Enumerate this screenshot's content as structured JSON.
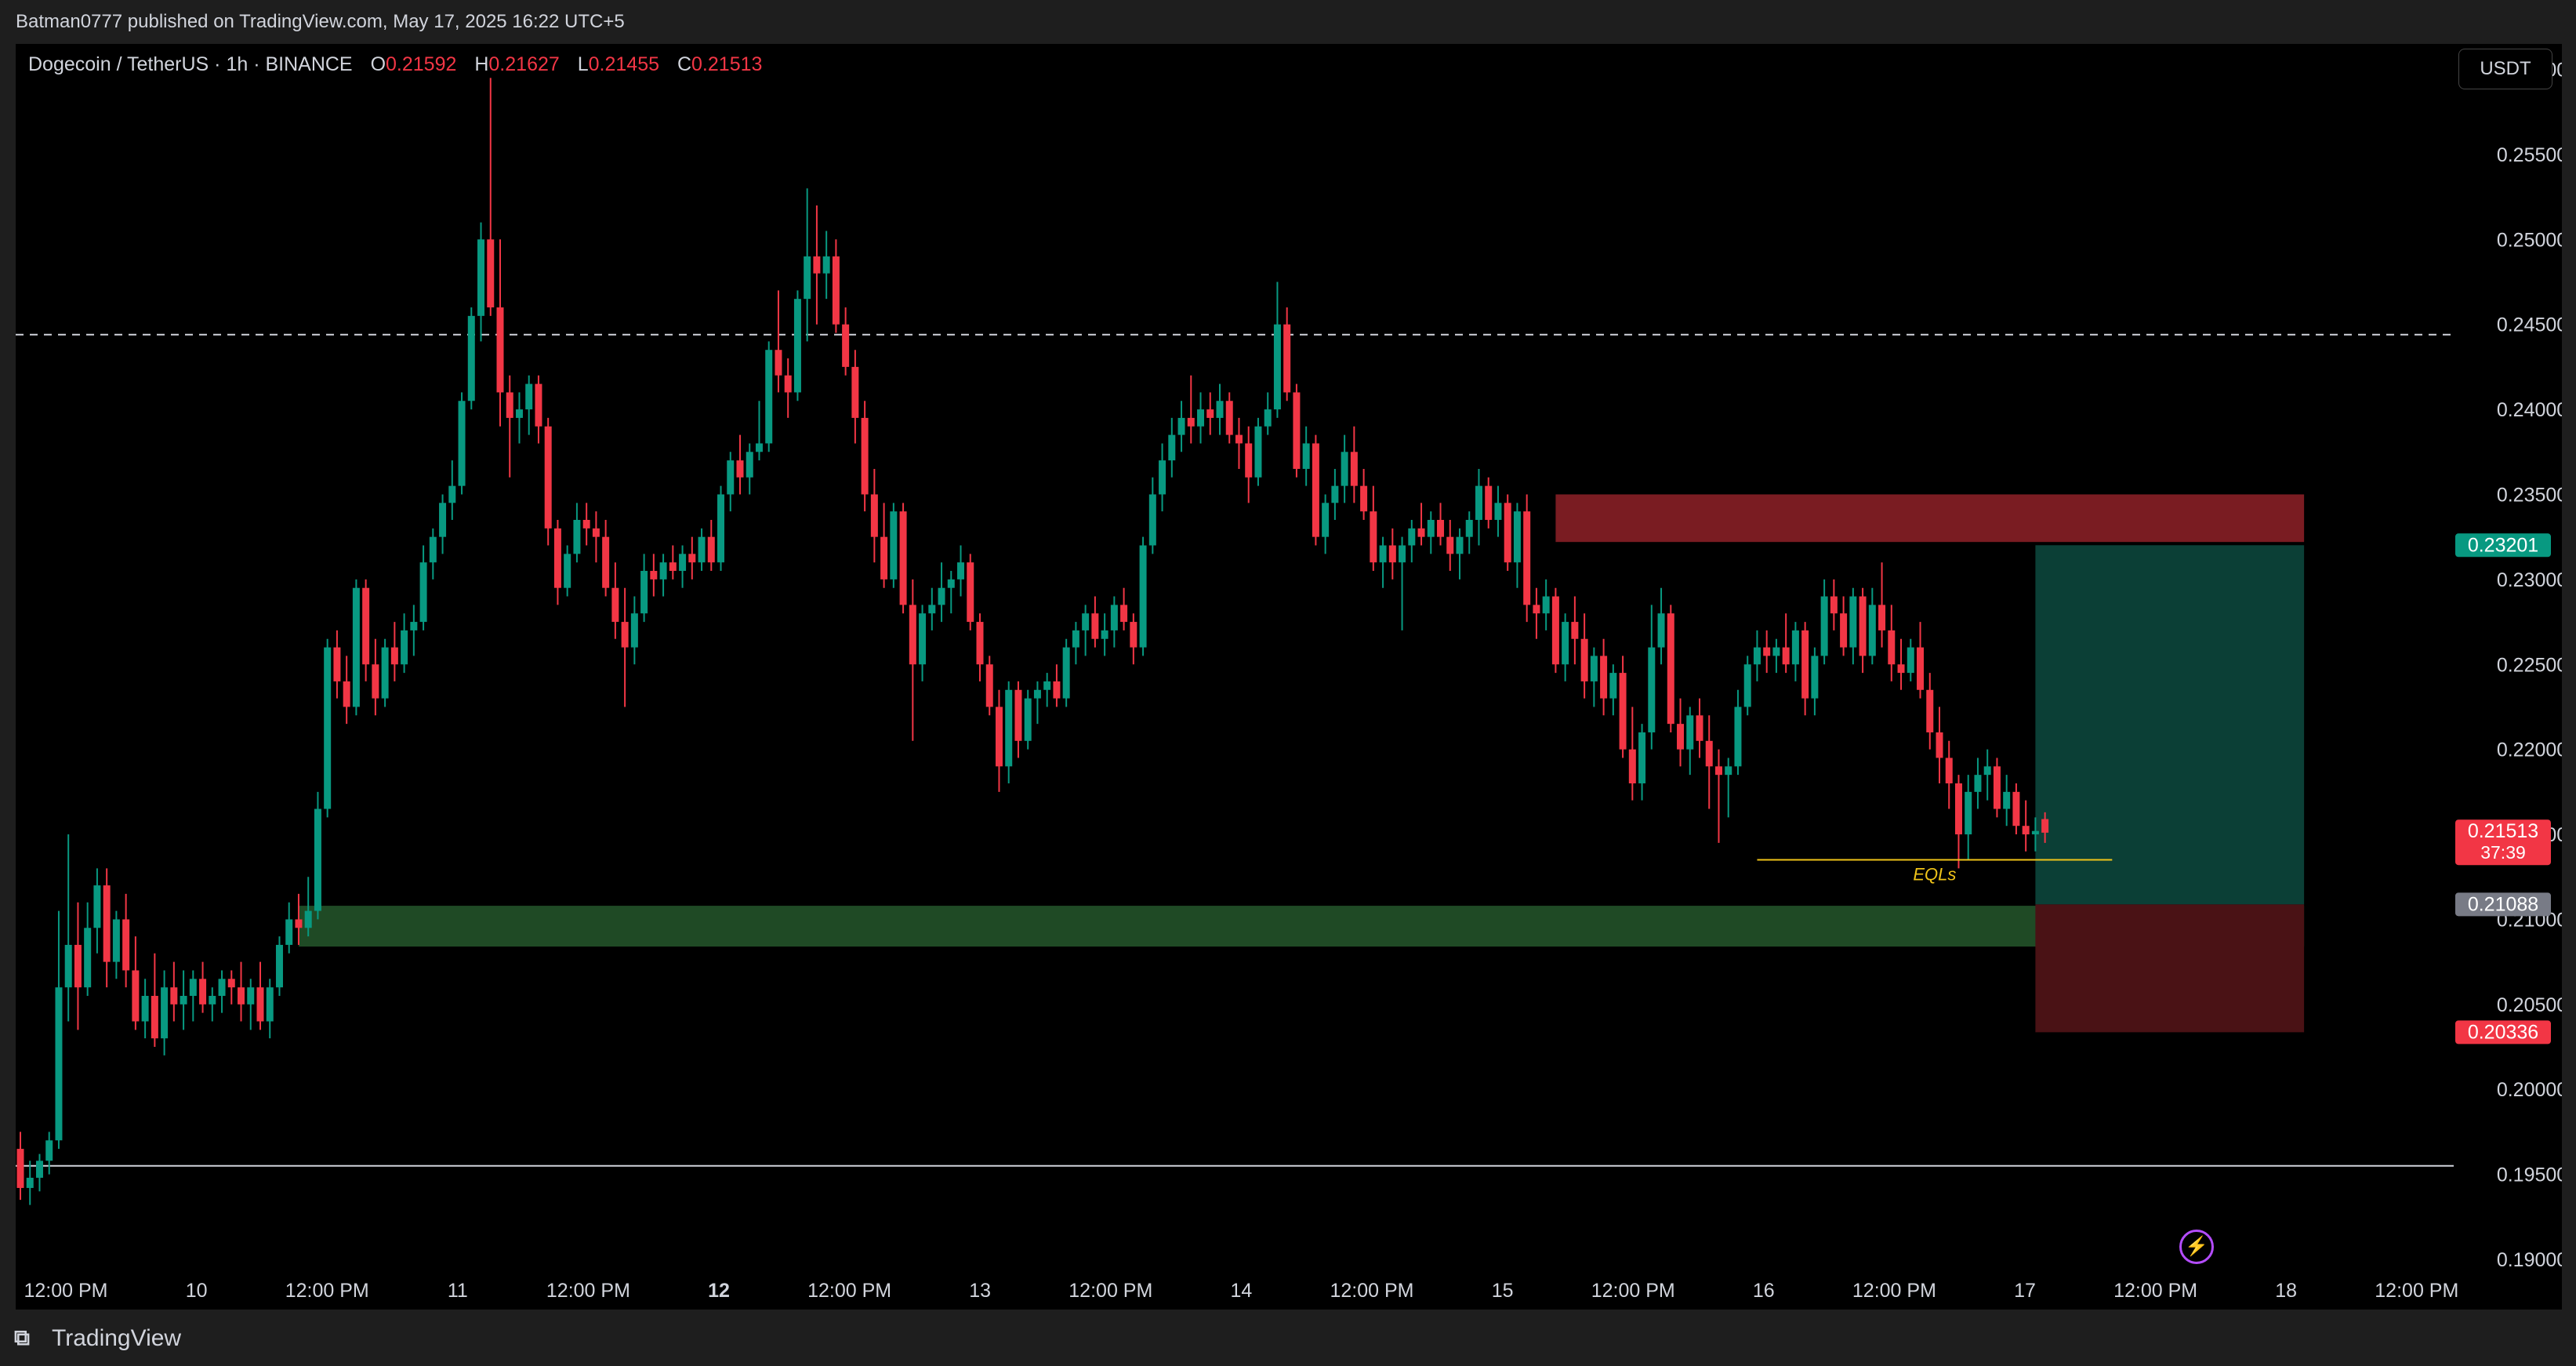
{
  "header": {
    "publish_line": "Batman0777 published on TradingView.com, May 17, 2025 16:22 UTC+5"
  },
  "legend": {
    "symbol": "Dogecoin / TetherUS · 1h · BINANCE",
    "open_label": "O",
    "open": "0.21592",
    "high_label": "H",
    "high": "0.21627",
    "low_label": "L",
    "low": "0.21455",
    "close_label": "C",
    "close": "0.21513"
  },
  "currency_button": "USDT",
  "footer": {
    "brand": "TradingView",
    "logo_icon": "tradingview-logo-icon"
  },
  "colors": {
    "up": "#089981",
    "down": "#f23645",
    "background": "#000000",
    "text": "#d1d4dc"
  },
  "chart_data": {
    "type": "candlestick",
    "ylim": [
      0.19,
      0.2615
    ],
    "y_ticks": [
      "0.26000",
      "0.25500",
      "0.25000",
      "0.24500",
      "0.24000",
      "0.23500",
      "0.23000",
      "0.22500",
      "0.22000",
      "0.21500",
      "0.21000",
      "0.20500",
      "0.20000",
      "0.19500",
      "0.19000"
    ],
    "x_ticks": [
      "12:00 PM",
      "10",
      "12:00 PM",
      "11",
      "12:00 PM",
      "12",
      "12:00 PM",
      "13",
      "12:00 PM",
      "14",
      "12:00 PM",
      "15",
      "12:00 PM",
      "16",
      "12:00 PM",
      "17",
      "12:00 PM",
      "18",
      "12:00 PM"
    ],
    "bold_x_tick": "12",
    "horizontal_lines": [
      {
        "price": 0.2444,
        "style": "dashed",
        "color": "#d1d4dc"
      },
      {
        "price": 0.1955,
        "style": "solid",
        "color": "#d1d4dc"
      }
    ],
    "zones": [
      {
        "name": "supply-zone",
        "from_index": 160,
        "to_index": 238,
        "top": 0.235,
        "bottom": 0.2322,
        "color": "#7a1c22"
      },
      {
        "name": "demand-zone",
        "from_index": 29,
        "to_index": 238,
        "top": 0.2108,
        "bottom": 0.2084,
        "color": "#1f4a25"
      }
    ],
    "position": {
      "from_index": 210,
      "to_index": 238,
      "target": 0.23201,
      "entry": 0.21088,
      "stop": 0.20336,
      "target_color": "#0b3f36",
      "stop_color": "#4a1215"
    },
    "eql": {
      "label": "EQLs",
      "price": 0.2135,
      "from_index": 181,
      "to_index": 218,
      "color": "#f0c419"
    },
    "price_tags": [
      {
        "text": "0.23201",
        "price": 0.23201,
        "color": "#089981"
      },
      {
        "text": "0.21513",
        "sub": "37:39",
        "price": 0.21513,
        "color": "#f23645"
      },
      {
        "text": "0.21088",
        "price": 0.21088,
        "color": "#787b86"
      },
      {
        "text": "0.20336",
        "price": 0.20336,
        "color": "#f23645"
      }
    ],
    "candles": [
      [
        0.1965,
        0.1975,
        0.1935,
        0.1942
      ],
      [
        0.1942,
        0.1958,
        0.1932,
        0.1948
      ],
      [
        0.1948,
        0.1962,
        0.194,
        0.1958
      ],
      [
        0.1958,
        0.1975,
        0.195,
        0.197
      ],
      [
        0.197,
        0.2105,
        0.1965,
        0.206
      ],
      [
        0.206,
        0.215,
        0.204,
        0.2085
      ],
      [
        0.2085,
        0.211,
        0.2035,
        0.206
      ],
      [
        0.206,
        0.211,
        0.2055,
        0.2095
      ],
      [
        0.2095,
        0.213,
        0.208,
        0.212
      ],
      [
        0.212,
        0.213,
        0.206,
        0.2075
      ],
      [
        0.2075,
        0.2105,
        0.2065,
        0.21
      ],
      [
        0.21,
        0.2115,
        0.206,
        0.207
      ],
      [
        0.207,
        0.209,
        0.2035,
        0.204
      ],
      [
        0.204,
        0.2065,
        0.203,
        0.2055
      ],
      [
        0.2055,
        0.208,
        0.2025,
        0.203
      ],
      [
        0.203,
        0.207,
        0.202,
        0.206
      ],
      [
        0.206,
        0.2075,
        0.204,
        0.205
      ],
      [
        0.205,
        0.207,
        0.2035,
        0.2055
      ],
      [
        0.2055,
        0.207,
        0.204,
        0.2065
      ],
      [
        0.2065,
        0.2075,
        0.2045,
        0.205
      ],
      [
        0.205,
        0.206,
        0.204,
        0.2055
      ],
      [
        0.2055,
        0.207,
        0.2045,
        0.2065
      ],
      [
        0.2065,
        0.207,
        0.205,
        0.206
      ],
      [
        0.206,
        0.2075,
        0.204,
        0.205
      ],
      [
        0.205,
        0.2065,
        0.2035,
        0.206
      ],
      [
        0.206,
        0.2075,
        0.2035,
        0.204
      ],
      [
        0.204,
        0.2065,
        0.203,
        0.206
      ],
      [
        0.206,
        0.209,
        0.2055,
        0.2085
      ],
      [
        0.2085,
        0.211,
        0.208,
        0.21
      ],
      [
        0.21,
        0.2115,
        0.2085,
        0.2095
      ],
      [
        0.2095,
        0.2125,
        0.209,
        0.2105
      ],
      [
        0.2105,
        0.2175,
        0.21,
        0.2165
      ],
      [
        0.2165,
        0.2265,
        0.216,
        0.226
      ],
      [
        0.226,
        0.227,
        0.223,
        0.224
      ],
      [
        0.224,
        0.2255,
        0.2215,
        0.2225
      ],
      [
        0.2225,
        0.23,
        0.222,
        0.2295
      ],
      [
        0.2295,
        0.23,
        0.224,
        0.225
      ],
      [
        0.225,
        0.2265,
        0.222,
        0.223
      ],
      [
        0.223,
        0.2265,
        0.2225,
        0.226
      ],
      [
        0.226,
        0.2275,
        0.224,
        0.225
      ],
      [
        0.225,
        0.228,
        0.2245,
        0.227
      ],
      [
        0.227,
        0.2285,
        0.2255,
        0.2275
      ],
      [
        0.2275,
        0.232,
        0.227,
        0.231
      ],
      [
        0.231,
        0.233,
        0.23,
        0.2325
      ],
      [
        0.2325,
        0.235,
        0.2315,
        0.2345
      ],
      [
        0.2345,
        0.237,
        0.2335,
        0.2355
      ],
      [
        0.2355,
        0.241,
        0.235,
        0.2405
      ],
      [
        0.2405,
        0.246,
        0.24,
        0.2455
      ],
      [
        0.2455,
        0.251,
        0.244,
        0.25
      ],
      [
        0.25,
        0.2595,
        0.2455,
        0.246
      ],
      [
        0.246,
        0.25,
        0.239,
        0.241
      ],
      [
        0.241,
        0.242,
        0.236,
        0.2395
      ],
      [
        0.2395,
        0.241,
        0.238,
        0.24
      ],
      [
        0.24,
        0.242,
        0.2385,
        0.2415
      ],
      [
        0.2415,
        0.242,
        0.238,
        0.239
      ],
      [
        0.239,
        0.2395,
        0.232,
        0.233
      ],
      [
        0.233,
        0.2335,
        0.2285,
        0.2295
      ],
      [
        0.2295,
        0.232,
        0.229,
        0.2315
      ],
      [
        0.2315,
        0.2345,
        0.231,
        0.2335
      ],
      [
        0.2335,
        0.2345,
        0.232,
        0.233
      ],
      [
        0.233,
        0.234,
        0.231,
        0.2325
      ],
      [
        0.2325,
        0.2335,
        0.229,
        0.2295
      ],
      [
        0.2295,
        0.231,
        0.2265,
        0.2275
      ],
      [
        0.2275,
        0.2295,
        0.2225,
        0.226
      ],
      [
        0.226,
        0.229,
        0.225,
        0.228
      ],
      [
        0.228,
        0.2315,
        0.2275,
        0.2305
      ],
      [
        0.2305,
        0.2315,
        0.229,
        0.23
      ],
      [
        0.23,
        0.2315,
        0.229,
        0.231
      ],
      [
        0.231,
        0.232,
        0.23,
        0.2305
      ],
      [
        0.2305,
        0.232,
        0.2295,
        0.2315
      ],
      [
        0.2315,
        0.2325,
        0.23,
        0.231
      ],
      [
        0.231,
        0.233,
        0.2305,
        0.2325
      ],
      [
        0.2325,
        0.2335,
        0.2305,
        0.231
      ],
      [
        0.231,
        0.2355,
        0.2305,
        0.235
      ],
      [
        0.235,
        0.2375,
        0.234,
        0.237
      ],
      [
        0.237,
        0.2385,
        0.235,
        0.236
      ],
      [
        0.236,
        0.238,
        0.235,
        0.2375
      ],
      [
        0.2375,
        0.2405,
        0.237,
        0.238
      ],
      [
        0.238,
        0.244,
        0.2375,
        0.2435
      ],
      [
        0.2435,
        0.247,
        0.241,
        0.242
      ],
      [
        0.242,
        0.243,
        0.2395,
        0.241
      ],
      [
        0.241,
        0.247,
        0.2405,
        0.2465
      ],
      [
        0.2465,
        0.253,
        0.244,
        0.249
      ],
      [
        0.249,
        0.252,
        0.245,
        0.248
      ],
      [
        0.248,
        0.2505,
        0.2465,
        0.249
      ],
      [
        0.249,
        0.25,
        0.2445,
        0.245
      ],
      [
        0.245,
        0.246,
        0.242,
        0.2425
      ],
      [
        0.2425,
        0.2435,
        0.238,
        0.2395
      ],
      [
        0.2395,
        0.2405,
        0.234,
        0.235
      ],
      [
        0.235,
        0.2365,
        0.231,
        0.2325
      ],
      [
        0.2325,
        0.2345,
        0.2295,
        0.23
      ],
      [
        0.23,
        0.2345,
        0.2295,
        0.234
      ],
      [
        0.234,
        0.2345,
        0.228,
        0.2285
      ],
      [
        0.2285,
        0.23,
        0.2205,
        0.225
      ],
      [
        0.225,
        0.2285,
        0.224,
        0.228
      ],
      [
        0.228,
        0.2295,
        0.227,
        0.2285
      ],
      [
        0.2285,
        0.231,
        0.2275,
        0.2295
      ],
      [
        0.2295,
        0.2305,
        0.228,
        0.23
      ],
      [
        0.23,
        0.232,
        0.229,
        0.231
      ],
      [
        0.231,
        0.2315,
        0.227,
        0.2275
      ],
      [
        0.2275,
        0.228,
        0.224,
        0.225
      ],
      [
        0.225,
        0.2255,
        0.222,
        0.2225
      ],
      [
        0.2225,
        0.2235,
        0.2175,
        0.219
      ],
      [
        0.219,
        0.224,
        0.218,
        0.2235
      ],
      [
        0.2235,
        0.224,
        0.2195,
        0.2205
      ],
      [
        0.2205,
        0.2235,
        0.22,
        0.223
      ],
      [
        0.223,
        0.224,
        0.2215,
        0.2235
      ],
      [
        0.2235,
        0.2245,
        0.2225,
        0.224
      ],
      [
        0.224,
        0.225,
        0.2225,
        0.223
      ],
      [
        0.223,
        0.2265,
        0.2225,
        0.226
      ],
      [
        0.226,
        0.2275,
        0.225,
        0.227
      ],
      [
        0.227,
        0.2285,
        0.2255,
        0.228
      ],
      [
        0.228,
        0.229,
        0.226,
        0.2265
      ],
      [
        0.2265,
        0.228,
        0.2255,
        0.227
      ],
      [
        0.227,
        0.229,
        0.226,
        0.2285
      ],
      [
        0.2285,
        0.2295,
        0.227,
        0.2275
      ],
      [
        0.2275,
        0.228,
        0.225,
        0.226
      ],
      [
        0.226,
        0.2325,
        0.2255,
        0.232
      ],
      [
        0.232,
        0.236,
        0.2315,
        0.235
      ],
      [
        0.235,
        0.238,
        0.234,
        0.237
      ],
      [
        0.237,
        0.2395,
        0.236,
        0.2385
      ],
      [
        0.2385,
        0.2405,
        0.2375,
        0.2395
      ],
      [
        0.2395,
        0.242,
        0.238,
        0.239
      ],
      [
        0.239,
        0.241,
        0.238,
        0.24
      ],
      [
        0.24,
        0.241,
        0.2385,
        0.2395
      ],
      [
        0.2395,
        0.2415,
        0.2385,
        0.2405
      ],
      [
        0.2405,
        0.241,
        0.238,
        0.2385
      ],
      [
        0.2385,
        0.2395,
        0.2365,
        0.238
      ],
      [
        0.238,
        0.239,
        0.2345,
        0.236
      ],
      [
        0.236,
        0.2395,
        0.2355,
        0.239
      ],
      [
        0.239,
        0.241,
        0.2385,
        0.24
      ],
      [
        0.24,
        0.2475,
        0.2395,
        0.245
      ],
      [
        0.245,
        0.246,
        0.2405,
        0.241
      ],
      [
        0.241,
        0.2415,
        0.236,
        0.2365
      ],
      [
        0.2365,
        0.239,
        0.2355,
        0.238
      ],
      [
        0.238,
        0.2385,
        0.232,
        0.2325
      ],
      [
        0.2325,
        0.235,
        0.2315,
        0.2345
      ],
      [
        0.2345,
        0.2365,
        0.2335,
        0.2355
      ],
      [
        0.2355,
        0.2385,
        0.2345,
        0.2375
      ],
      [
        0.2375,
        0.239,
        0.2345,
        0.2355
      ],
      [
        0.2355,
        0.2365,
        0.2335,
        0.234
      ],
      [
        0.234,
        0.2355,
        0.2305,
        0.231
      ],
      [
        0.231,
        0.2325,
        0.2295,
        0.232
      ],
      [
        0.232,
        0.233,
        0.23,
        0.231
      ],
      [
        0.231,
        0.2325,
        0.227,
        0.232
      ],
      [
        0.232,
        0.2335,
        0.231,
        0.233
      ],
      [
        0.233,
        0.2345,
        0.232,
        0.2325
      ],
      [
        0.2325,
        0.234,
        0.2315,
        0.2335
      ],
      [
        0.2335,
        0.2345,
        0.232,
        0.2325
      ],
      [
        0.2325,
        0.2335,
        0.2305,
        0.2315
      ],
      [
        0.2315,
        0.233,
        0.23,
        0.2325
      ],
      [
        0.2325,
        0.234,
        0.2315,
        0.2335
      ],
      [
        0.2335,
        0.2365,
        0.232,
        0.2355
      ],
      [
        0.2355,
        0.236,
        0.233,
        0.2335
      ],
      [
        0.2335,
        0.2355,
        0.2325,
        0.2345
      ],
      [
        0.2345,
        0.235,
        0.2305,
        0.231
      ],
      [
        0.231,
        0.2345,
        0.2295,
        0.234
      ],
      [
        0.234,
        0.235,
        0.2275,
        0.2285
      ],
      [
        0.2285,
        0.2295,
        0.2265,
        0.228
      ],
      [
        0.228,
        0.23,
        0.227,
        0.229
      ],
      [
        0.229,
        0.2295,
        0.2245,
        0.225
      ],
      [
        0.225,
        0.228,
        0.224,
        0.2275
      ],
      [
        0.2275,
        0.229,
        0.225,
        0.2265
      ],
      [
        0.2265,
        0.228,
        0.223,
        0.224
      ],
      [
        0.224,
        0.226,
        0.2225,
        0.2255
      ],
      [
        0.2255,
        0.2265,
        0.222,
        0.223
      ],
      [
        0.223,
        0.225,
        0.222,
        0.2245
      ],
      [
        0.2245,
        0.2255,
        0.2195,
        0.22
      ],
      [
        0.22,
        0.2225,
        0.217,
        0.218
      ],
      [
        0.218,
        0.2215,
        0.217,
        0.221
      ],
      [
        0.221,
        0.2285,
        0.22,
        0.226
      ],
      [
        0.226,
        0.2295,
        0.225,
        0.228
      ],
      [
        0.228,
        0.2285,
        0.221,
        0.2215
      ],
      [
        0.2215,
        0.223,
        0.219,
        0.22
      ],
      [
        0.22,
        0.2225,
        0.2185,
        0.222
      ],
      [
        0.222,
        0.223,
        0.2195,
        0.2205
      ],
      [
        0.2205,
        0.222,
        0.2165,
        0.219
      ],
      [
        0.219,
        0.22,
        0.2145,
        0.2185
      ],
      [
        0.2185,
        0.2195,
        0.216,
        0.219
      ],
      [
        0.219,
        0.2235,
        0.2185,
        0.2225
      ],
      [
        0.2225,
        0.2255,
        0.222,
        0.225
      ],
      [
        0.225,
        0.227,
        0.224,
        0.226
      ],
      [
        0.226,
        0.227,
        0.2245,
        0.2255
      ],
      [
        0.2255,
        0.2265,
        0.2245,
        0.226
      ],
      [
        0.226,
        0.228,
        0.2245,
        0.225
      ],
      [
        0.225,
        0.2275,
        0.224,
        0.227
      ],
      [
        0.227,
        0.2275,
        0.222,
        0.223
      ],
      [
        0.223,
        0.226,
        0.222,
        0.2255
      ],
      [
        0.2255,
        0.23,
        0.225,
        0.229
      ],
      [
        0.229,
        0.23,
        0.227,
        0.228
      ],
      [
        0.228,
        0.229,
        0.2255,
        0.226
      ],
      [
        0.226,
        0.2295,
        0.225,
        0.229
      ],
      [
        0.229,
        0.2295,
        0.2245,
        0.2255
      ],
      [
        0.2255,
        0.2295,
        0.225,
        0.2285
      ],
      [
        0.2285,
        0.231,
        0.226,
        0.227
      ],
      [
        0.227,
        0.2285,
        0.224,
        0.225
      ],
      [
        0.225,
        0.2265,
        0.2235,
        0.2245
      ],
      [
        0.2245,
        0.2265,
        0.224,
        0.226
      ],
      [
        0.226,
        0.2275,
        0.223,
        0.2235
      ],
      [
        0.2235,
        0.2245,
        0.22,
        0.221
      ],
      [
        0.221,
        0.2225,
        0.218,
        0.2195
      ],
      [
        0.2195,
        0.2205,
        0.2165,
        0.218
      ],
      [
        0.218,
        0.2185,
        0.213,
        0.215
      ],
      [
        0.215,
        0.2185,
        0.2135,
        0.2175
      ],
      [
        0.2175,
        0.2195,
        0.2165,
        0.2185
      ],
      [
        0.2185,
        0.22,
        0.217,
        0.219
      ],
      [
        0.219,
        0.2195,
        0.216,
        0.2165
      ],
      [
        0.2165,
        0.2185,
        0.2155,
        0.2175
      ],
      [
        0.2175,
        0.218,
        0.215,
        0.2155
      ],
      [
        0.2155,
        0.217,
        0.214,
        0.215
      ],
      [
        0.215,
        0.216,
        0.214,
        0.2152
      ],
      [
        0.2159,
        0.2163,
        0.2145,
        0.2151
      ]
    ]
  }
}
